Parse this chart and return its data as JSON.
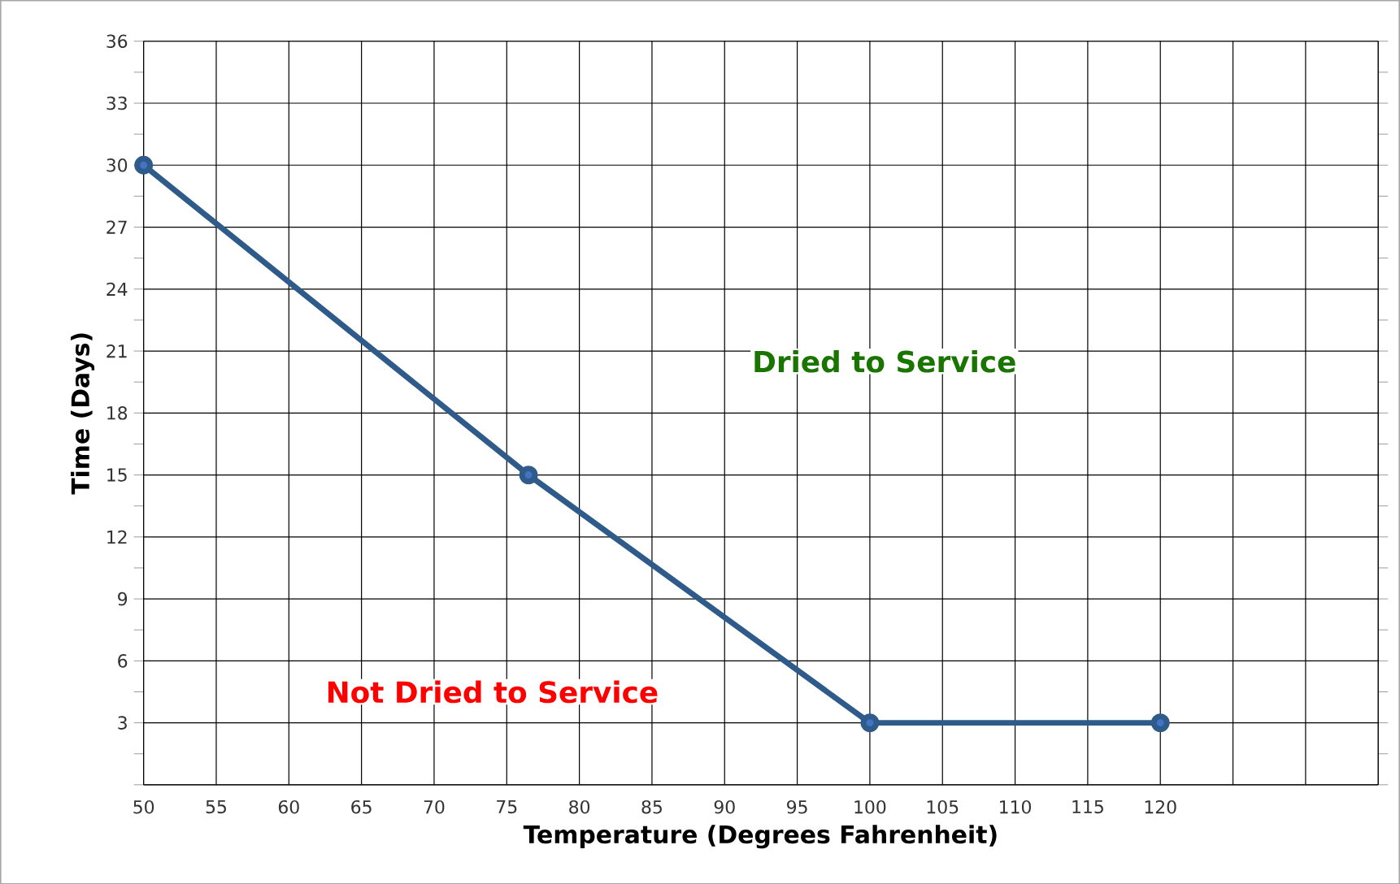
{
  "chart_data": {
    "type": "line",
    "xlabel": "Temperature (Degrees Fahrenheit)",
    "ylabel": "Time (Days)",
    "x": [
      50,
      76.5,
      100,
      120
    ],
    "series": [
      {
        "color": "#2f5b8a",
        "values": [
          30,
          15,
          3,
          3
        ]
      }
    ],
    "marker": "circle",
    "line_style": "solid",
    "grid": true,
    "xlim": [
      50,
      135
    ],
    "ylim": [
      0,
      36
    ],
    "xticks": [
      50,
      55,
      60,
      65,
      70,
      75,
      80,
      85,
      90,
      95,
      100,
      105,
      110,
      115,
      120,
      {
        "value": 125,
        "label": null
      },
      {
        "value": 130,
        "label": null
      },
      {
        "value": 135,
        "label": null
      }
    ],
    "yticks": [
      {
        "value": 0,
        "label": null
      },
      3,
      6,
      9,
      12,
      15,
      18,
      21,
      24,
      27,
      30,
      33,
      36
    ],
    "annotations": [
      "Dried to Service",
      "Not Dried to Service"
    ]
  }
}
